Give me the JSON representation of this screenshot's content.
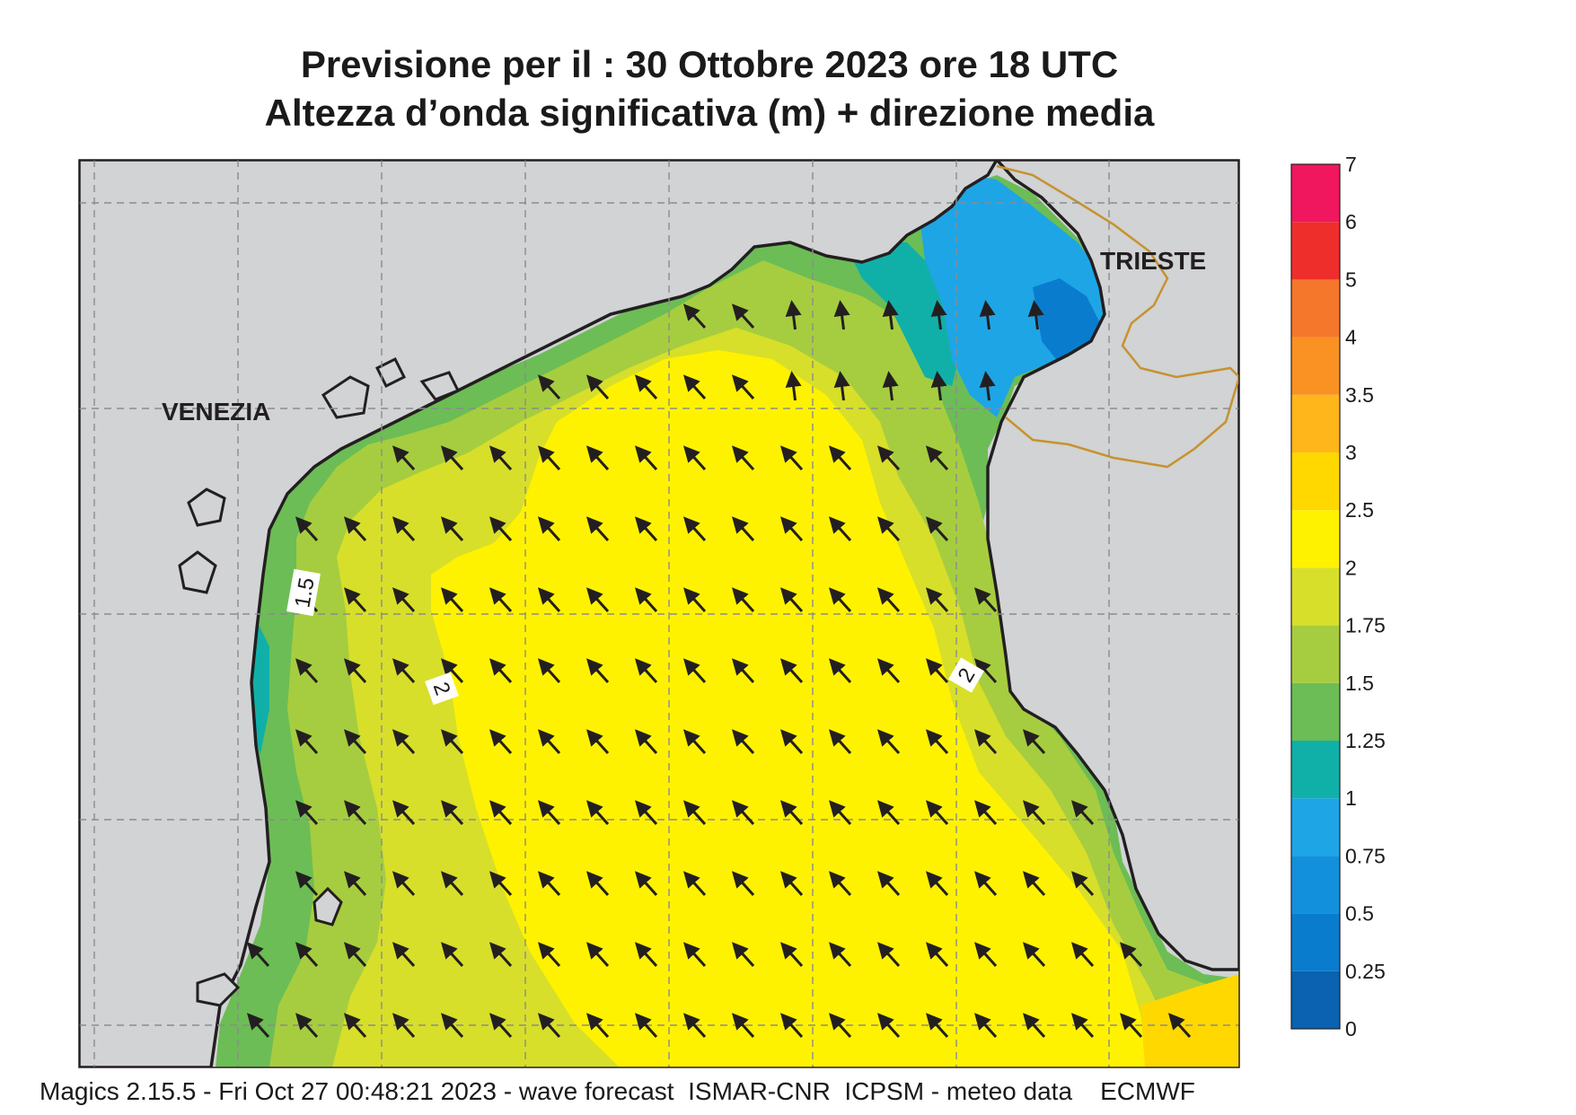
{
  "header": {
    "title_line1": "Previsione per il  :  30  Ottobre  2023   ore 18 UTC",
    "title_line2": "Altezza d’onda significativa (m) + direzione media"
  },
  "map_labels": {
    "city_west": "VENEZIA",
    "city_east": "TRIESTE",
    "contour_15": "1.5",
    "contour_2_west": "2",
    "contour_2_east": "2"
  },
  "legend": {
    "title": "",
    "levels": [
      "0",
      "0.25",
      "0.5",
      "0.75",
      "1",
      "1.25",
      "1.5",
      "1.75",
      "2",
      "2.5",
      "3",
      "3.5",
      "4",
      "5",
      "6",
      "7"
    ],
    "colors": [
      "#0a62b0",
      "#0a7ccd",
      "#1390dc",
      "#1ea5e6",
      "#10b0a8",
      "#6cbd55",
      "#a6cd3f",
      "#d7df2a",
      "#fff200",
      "#ffd800",
      "#ffb61a",
      "#f99222",
      "#f4772b",
      "#ee2e2b",
      "#f0175f"
    ]
  },
  "colors": {
    "land": "#d1d3d4",
    "coast": "#231f20",
    "border": "#c7922f",
    "arrow": "#231f20"
  },
  "footer": {
    "text": "Magics 2.15.5 - Fri Oct 27 00:48:21 2023 - wave forecast  ISMAR-CNR  ICPSM - meteo data    ECMWF"
  }
}
